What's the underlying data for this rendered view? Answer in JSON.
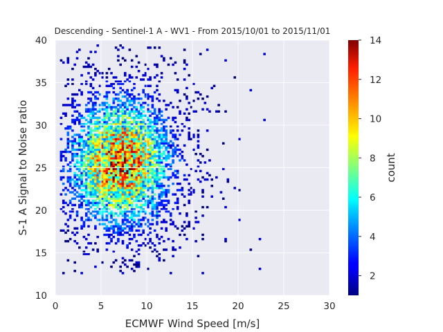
{
  "chart_data": {
    "type": "heatmap",
    "title": "Descending - Sentinel-1 A - WV1 - From 2015/10/01 to 2015/11/01",
    "xlabel": "ECMWF Wind Speed [m/s]",
    "ylabel": "S-1 A Signal to Noise ratio",
    "xlim": [
      0,
      30
    ],
    "ylim": [
      10,
      40
    ],
    "xticks": [
      "0",
      "5",
      "10",
      "15",
      "20",
      "25",
      "30"
    ],
    "yticks": [
      "10",
      "15",
      "20",
      "25",
      "30",
      "35",
      "40"
    ],
    "bins": {
      "x_bin_width": 0.25,
      "y_bin_width": 0.25
    },
    "grid": true,
    "density": {
      "peak_x": 7.0,
      "peak_y": 25.5,
      "max_count": 14,
      "x_extent_with_counts": [
        0.5,
        23
      ],
      "y_extent_with_counts": [
        12.5,
        39.5
      ]
    },
    "colorbar": {
      "label": "count",
      "min": 1,
      "max": 14,
      "ticks": [
        "2",
        "4",
        "6",
        "8",
        "10",
        "12",
        "14"
      ],
      "colormap": "jet"
    }
  },
  "colors": {
    "plot_background": "#eaeaf2",
    "grid": "#ffffff",
    "text": "#262626"
  }
}
